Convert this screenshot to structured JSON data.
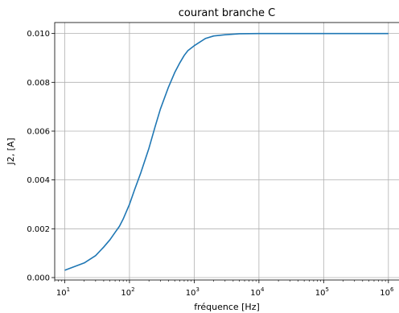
{
  "chart_data": {
    "type": "line",
    "title": "courant branche C",
    "xlabel": "fréquence [Hz]",
    "ylabel": "J2, [A]",
    "xscale": "log",
    "xlim": [
      7,
      1500000
    ],
    "ylim": [
      -0.0001,
      0.01045
    ],
    "grid": true,
    "x_ticks": [
      {
        "base": "10",
        "exp": "1",
        "value": 10
      },
      {
        "base": "10",
        "exp": "2",
        "value": 100
      },
      {
        "base": "10",
        "exp": "3",
        "value": 1000
      },
      {
        "base": "10",
        "exp": "4",
        "value": 10000
      },
      {
        "base": "10",
        "exp": "5",
        "value": 100000
      },
      {
        "base": "10",
        "exp": "6",
        "value": 1000000
      }
    ],
    "y_ticks": [
      {
        "label": "0.000",
        "value": 0.0
      },
      {
        "label": "0.002",
        "value": 0.002
      },
      {
        "label": "0.004",
        "value": 0.004
      },
      {
        "label": "0.006",
        "value": 0.006
      },
      {
        "label": "0.008",
        "value": 0.008
      },
      {
        "label": "0.010",
        "value": 0.01
      }
    ],
    "series": [
      {
        "color": "#1f77b4",
        "x": [
          10,
          20,
          30,
          40,
          50,
          60,
          70,
          80,
          100,
          120,
          150,
          200,
          250,
          300,
          400,
          500,
          600,
          700,
          800,
          1000,
          1500,
          2000,
          3000,
          5000,
          10000,
          30000,
          100000,
          1000000
        ],
        "y": [
          0.0003,
          0.0006,
          0.0009,
          0.00125,
          0.00155,
          0.00185,
          0.0021,
          0.0024,
          0.003,
          0.0036,
          0.0043,
          0.0053,
          0.0062,
          0.0069,
          0.0078,
          0.0084,
          0.0088,
          0.0091,
          0.0093,
          0.0095,
          0.0098,
          0.0099,
          0.00995,
          0.00999,
          0.01,
          0.01,
          0.01,
          0.01
        ]
      }
    ]
  }
}
